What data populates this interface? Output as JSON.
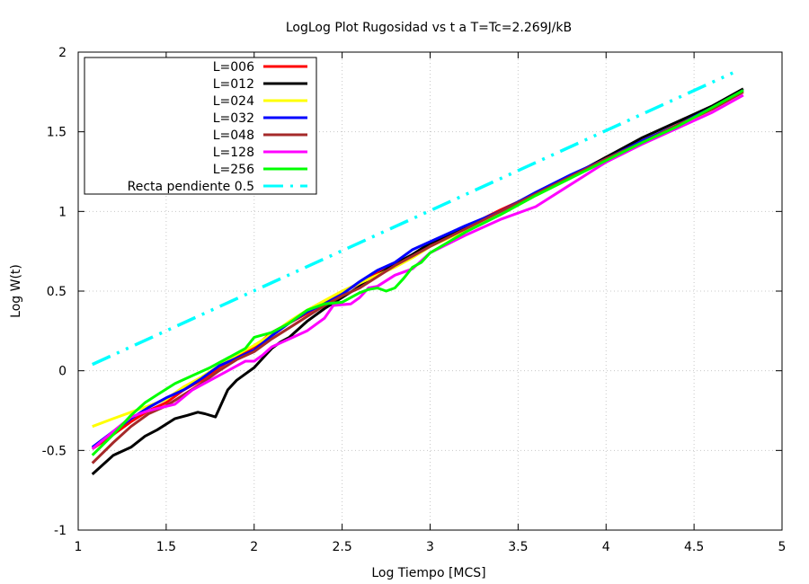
{
  "chart_data": {
    "type": "line",
    "title": "LogLog Plot Rugosidad vs t a T=Tc=2.269J/kB",
    "xlabel": "Log Tiempo [MCS]",
    "ylabel": "Log W(t)",
    "xlim": [
      1,
      5
    ],
    "ylim": [
      -1,
      2
    ],
    "xticks": [
      1,
      1.5,
      2,
      2.5,
      3,
      3.5,
      4,
      4.5,
      5
    ],
    "xtick_labels": [
      "1",
      "1.5",
      "2",
      "2.5",
      "3",
      "3.5",
      "4",
      "4.5",
      "5"
    ],
    "yticks": [
      -1,
      -0.5,
      0,
      0.5,
      1,
      1.5,
      2
    ],
    "ytick_labels": [
      "-1",
      "-0.5",
      "0",
      "0.5",
      "1",
      "1.5",
      "2"
    ],
    "grid": true,
    "legend_position": "top-left",
    "series": [
      {
        "name": "L=006",
        "color": "#ff0000",
        "dash": "solid",
        "points": [
          [
            1.08,
            -0.49
          ],
          [
            1.2,
            -0.4
          ],
          [
            1.3,
            -0.32
          ],
          [
            1.4,
            -0.25
          ],
          [
            1.5,
            -0.2
          ],
          [
            1.6,
            -0.12
          ],
          [
            1.7,
            -0.06
          ],
          [
            1.8,
            0.02
          ],
          [
            1.9,
            0.09
          ],
          [
            2.0,
            0.15
          ],
          [
            2.1,
            0.24
          ],
          [
            2.2,
            0.3
          ],
          [
            2.3,
            0.36
          ],
          [
            2.4,
            0.43
          ],
          [
            2.5,
            0.49
          ],
          [
            2.6,
            0.55
          ],
          [
            2.7,
            0.62
          ],
          [
            2.8,
            0.67
          ],
          [
            2.9,
            0.72
          ],
          [
            3.0,
            0.79
          ],
          [
            3.2,
            0.9
          ],
          [
            3.4,
            1.01
          ],
          [
            3.6,
            1.11
          ],
          [
            3.8,
            1.22
          ],
          [
            4.0,
            1.34
          ],
          [
            4.2,
            1.44
          ],
          [
            4.4,
            1.54
          ],
          [
            4.6,
            1.65
          ],
          [
            4.78,
            1.76
          ]
        ]
      },
      {
        "name": "L=012",
        "color": "#000000",
        "dash": "solid",
        "points": [
          [
            1.08,
            -0.65
          ],
          [
            1.2,
            -0.53
          ],
          [
            1.3,
            -0.48
          ],
          [
            1.38,
            -0.41
          ],
          [
            1.45,
            -0.37
          ],
          [
            1.55,
            -0.3
          ],
          [
            1.62,
            -0.28
          ],
          [
            1.68,
            -0.26
          ],
          [
            1.72,
            -0.27
          ],
          [
            1.78,
            -0.29
          ],
          [
            1.85,
            -0.12
          ],
          [
            1.9,
            -0.06
          ],
          [
            1.95,
            -0.02
          ],
          [
            2.0,
            0.02
          ],
          [
            2.05,
            0.08
          ],
          [
            2.1,
            0.14
          ],
          [
            2.15,
            0.18
          ],
          [
            2.2,
            0.21
          ],
          [
            2.3,
            0.31
          ],
          [
            2.4,
            0.39
          ],
          [
            2.5,
            0.46
          ],
          [
            2.6,
            0.53
          ],
          [
            2.7,
            0.6
          ],
          [
            2.8,
            0.67
          ],
          [
            2.9,
            0.73
          ],
          [
            3.0,
            0.8
          ],
          [
            3.2,
            0.9
          ],
          [
            3.4,
            1.0
          ],
          [
            3.6,
            1.11
          ],
          [
            3.8,
            1.22
          ],
          [
            4.0,
            1.34
          ],
          [
            4.2,
            1.46
          ],
          [
            4.4,
            1.56
          ],
          [
            4.6,
            1.66
          ],
          [
            4.78,
            1.77
          ]
        ]
      },
      {
        "name": "L=024",
        "color": "#ffff00",
        "dash": "solid",
        "points": [
          [
            1.08,
            -0.35
          ],
          [
            1.2,
            -0.3
          ],
          [
            1.3,
            -0.26
          ],
          [
            1.4,
            -0.22
          ],
          [
            1.5,
            -0.18
          ],
          [
            1.6,
            -0.1
          ],
          [
            1.7,
            -0.04
          ],
          [
            1.8,
            0.03
          ],
          [
            1.9,
            0.1
          ],
          [
            2.0,
            0.16
          ],
          [
            2.1,
            0.23
          ],
          [
            2.2,
            0.31
          ],
          [
            2.3,
            0.38
          ],
          [
            2.4,
            0.44
          ],
          [
            2.5,
            0.5
          ],
          [
            2.6,
            0.55
          ],
          [
            2.7,
            0.6
          ],
          [
            2.8,
            0.65
          ],
          [
            2.9,
            0.71
          ],
          [
            3.0,
            0.78
          ],
          [
            3.2,
            0.88
          ],
          [
            3.4,
            0.98
          ],
          [
            3.6,
            1.1
          ],
          [
            3.8,
            1.21
          ],
          [
            4.0,
            1.33
          ],
          [
            4.2,
            1.43
          ],
          [
            4.4,
            1.53
          ],
          [
            4.6,
            1.64
          ],
          [
            4.78,
            1.75
          ]
        ]
      },
      {
        "name": "L=032",
        "color": "#0000ff",
        "dash": "solid",
        "points": [
          [
            1.08,
            -0.48
          ],
          [
            1.2,
            -0.38
          ],
          [
            1.3,
            -0.3
          ],
          [
            1.4,
            -0.23
          ],
          [
            1.5,
            -0.17
          ],
          [
            1.6,
            -0.12
          ],
          [
            1.7,
            -0.05
          ],
          [
            1.8,
            0.03
          ],
          [
            1.9,
            0.08
          ],
          [
            2.0,
            0.13
          ],
          [
            2.1,
            0.22
          ],
          [
            2.2,
            0.3
          ],
          [
            2.3,
            0.37
          ],
          [
            2.4,
            0.42
          ],
          [
            2.5,
            0.48
          ],
          [
            2.6,
            0.56
          ],
          [
            2.7,
            0.63
          ],
          [
            2.8,
            0.68
          ],
          [
            2.9,
            0.76
          ],
          [
            3.0,
            0.81
          ],
          [
            3.2,
            0.91
          ],
          [
            3.4,
            1.0
          ],
          [
            3.6,
            1.12
          ],
          [
            3.8,
            1.23
          ],
          [
            4.0,
            1.33
          ],
          [
            4.2,
            1.44
          ],
          [
            4.4,
            1.54
          ],
          [
            4.6,
            1.65
          ],
          [
            4.78,
            1.76
          ]
        ]
      },
      {
        "name": "L=048",
        "color": "#a52a2a",
        "dash": "solid",
        "points": [
          [
            1.08,
            -0.58
          ],
          [
            1.2,
            -0.45
          ],
          [
            1.3,
            -0.35
          ],
          [
            1.4,
            -0.27
          ],
          [
            1.5,
            -0.22
          ],
          [
            1.6,
            -0.15
          ],
          [
            1.7,
            -0.08
          ],
          [
            1.8,
            0.0
          ],
          [
            1.9,
            0.07
          ],
          [
            2.0,
            0.12
          ],
          [
            2.1,
            0.2
          ],
          [
            2.2,
            0.27
          ],
          [
            2.3,
            0.34
          ],
          [
            2.4,
            0.41
          ],
          [
            2.5,
            0.47
          ],
          [
            2.6,
            0.52
          ],
          [
            2.7,
            0.59
          ],
          [
            2.8,
            0.66
          ],
          [
            2.9,
            0.72
          ],
          [
            3.0,
            0.78
          ],
          [
            3.2,
            0.89
          ],
          [
            3.4,
            1.0
          ],
          [
            3.6,
            1.11
          ],
          [
            3.8,
            1.22
          ],
          [
            4.0,
            1.33
          ],
          [
            4.2,
            1.43
          ],
          [
            4.4,
            1.54
          ],
          [
            4.6,
            1.64
          ],
          [
            4.78,
            1.75
          ]
        ]
      },
      {
        "name": "L=128",
        "color": "#ff00ff",
        "dash": "solid",
        "points": [
          [
            1.08,
            -0.49
          ],
          [
            1.2,
            -0.38
          ],
          [
            1.3,
            -0.29
          ],
          [
            1.4,
            -0.25
          ],
          [
            1.55,
            -0.21
          ],
          [
            1.65,
            -0.12
          ],
          [
            1.75,
            -0.06
          ],
          [
            1.85,
            0.0
          ],
          [
            1.9,
            0.03
          ],
          [
            1.95,
            0.06
          ],
          [
            2.0,
            0.06
          ],
          [
            2.05,
            0.1
          ],
          [
            2.1,
            0.15
          ],
          [
            2.2,
            0.2
          ],
          [
            2.3,
            0.25
          ],
          [
            2.4,
            0.33
          ],
          [
            2.45,
            0.41
          ],
          [
            2.55,
            0.42
          ],
          [
            2.6,
            0.46
          ],
          [
            2.65,
            0.52
          ],
          [
            2.7,
            0.53
          ],
          [
            2.8,
            0.6
          ],
          [
            2.9,
            0.64
          ],
          [
            2.95,
            0.69
          ],
          [
            3.0,
            0.74
          ],
          [
            3.2,
            0.85
          ],
          [
            3.4,
            0.95
          ],
          [
            3.6,
            1.03
          ],
          [
            3.8,
            1.17
          ],
          [
            4.0,
            1.31
          ],
          [
            4.2,
            1.42
          ],
          [
            4.4,
            1.52
          ],
          [
            4.6,
            1.62
          ],
          [
            4.78,
            1.73
          ]
        ]
      },
      {
        "name": "L=256",
        "color": "#00ff00",
        "dash": "solid",
        "points": [
          [
            1.08,
            -0.53
          ],
          [
            1.2,
            -0.4
          ],
          [
            1.3,
            -0.28
          ],
          [
            1.38,
            -0.2
          ],
          [
            1.45,
            -0.15
          ],
          [
            1.55,
            -0.08
          ],
          [
            1.65,
            -0.03
          ],
          [
            1.75,
            0.02
          ],
          [
            1.85,
            0.08
          ],
          [
            1.95,
            0.14
          ],
          [
            2.0,
            0.21
          ],
          [
            2.1,
            0.24
          ],
          [
            2.15,
            0.27
          ],
          [
            2.2,
            0.3
          ],
          [
            2.3,
            0.38
          ],
          [
            2.4,
            0.42
          ],
          [
            2.5,
            0.43
          ],
          [
            2.6,
            0.49
          ],
          [
            2.65,
            0.51
          ],
          [
            2.7,
            0.52
          ],
          [
            2.75,
            0.5
          ],
          [
            2.8,
            0.52
          ],
          [
            2.85,
            0.58
          ],
          [
            2.9,
            0.65
          ],
          [
            2.95,
            0.68
          ],
          [
            3.0,
            0.74
          ],
          [
            3.2,
            0.87
          ],
          [
            3.4,
            0.98
          ],
          [
            3.6,
            1.1
          ],
          [
            3.8,
            1.21
          ],
          [
            4.0,
            1.32
          ],
          [
            4.2,
            1.43
          ],
          [
            4.4,
            1.53
          ],
          [
            4.6,
            1.65
          ],
          [
            4.78,
            1.76
          ]
        ]
      },
      {
        "name": "Recta pendiente 0.5",
        "color": "#00ffff",
        "dash": "dash-dot-dot",
        "points": [
          [
            1.08,
            0.04
          ],
          [
            4.72,
            1.87
          ]
        ]
      }
    ]
  }
}
